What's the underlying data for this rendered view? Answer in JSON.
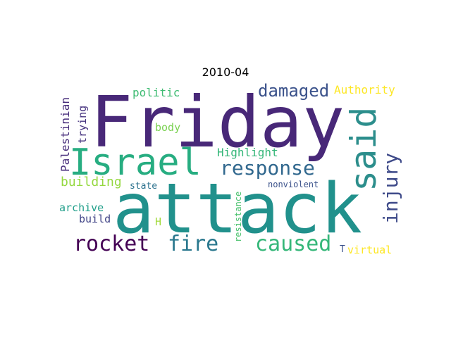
{
  "title": "2010-04",
  "words": [
    {
      "text": "Friday",
      "color": "#482878"
    },
    {
      "text": "attack",
      "color": "#21918c"
    },
    {
      "text": "Israel",
      "color": "#27ad81"
    },
    {
      "text": "said",
      "color": "#2c8e8c"
    },
    {
      "text": "response",
      "color": "#31688e"
    },
    {
      "text": "damaged",
      "color": "#3b528b"
    },
    {
      "text": "injury",
      "color": "#3e4a89"
    },
    {
      "text": "rocket",
      "color": "#440154"
    },
    {
      "text": "fire",
      "color": "#2a788e"
    },
    {
      "text": "caused",
      "color": "#35b779"
    },
    {
      "text": "Palestinian",
      "color": "#472d7b"
    },
    {
      "text": "trying",
      "color": "#46337f"
    },
    {
      "text": "politic",
      "color": "#3fbc73"
    },
    {
      "text": "Authority",
      "color": "#fde725"
    },
    {
      "text": "body",
      "color": "#7ad151"
    },
    {
      "text": "Highlight",
      "color": "#35b779"
    },
    {
      "text": "building",
      "color": "#95d840"
    },
    {
      "text": "state",
      "color": "#2c728e"
    },
    {
      "text": "nonviolent",
      "color": "#3b528b"
    },
    {
      "text": "archive",
      "color": "#1f9e89"
    },
    {
      "text": "build",
      "color": "#414487"
    },
    {
      "text": "H",
      "color": "#a0da39"
    },
    {
      "text": "resistance",
      "color": "#4ac16d"
    },
    {
      "text": "T",
      "color": "#3b528b"
    },
    {
      "text": "virtual",
      "color": "#fde725"
    }
  ]
}
